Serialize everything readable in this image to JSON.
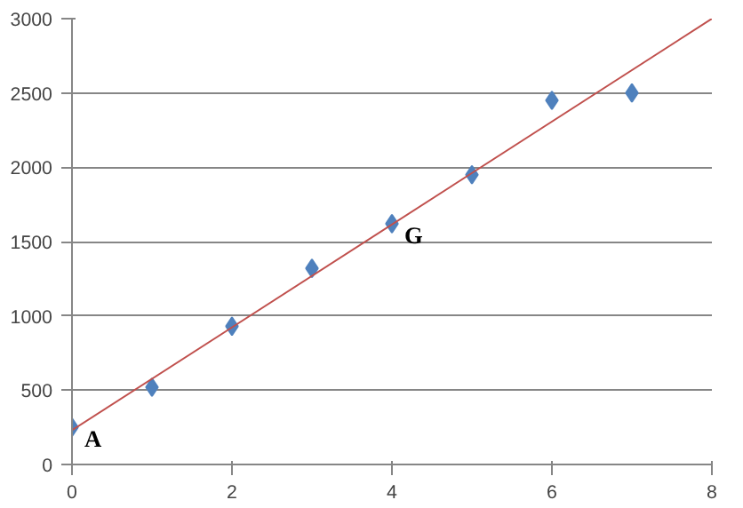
{
  "chart_data": {
    "type": "scatter",
    "series": [
      {
        "color": "#4f81bd",
        "marker": "diamond",
        "x": [
          0,
          1,
          2,
          3,
          4,
          5,
          6,
          7
        ],
        "values": [
          250,
          520,
          930,
          1320,
          1620,
          1950,
          2450,
          2500
        ]
      },
      {
        "type": "line",
        "color": "#c0504d",
        "marker": "none",
        "x": [
          0,
          8
        ],
        "values": [
          230,
          3000
        ]
      }
    ],
    "annotations": [
      {
        "text": "A",
        "x": 0,
        "y": 250
      },
      {
        "text": "G",
        "x": 4,
        "y": 1620
      }
    ],
    "xlim": [
      0,
      8
    ],
    "xticks": [
      0,
      2,
      4,
      6,
      8
    ],
    "ylim": [
      0,
      3000
    ],
    "yticks": [
      0,
      500,
      1000,
      1500,
      2000,
      2500,
      3000
    ],
    "grid": "y"
  }
}
